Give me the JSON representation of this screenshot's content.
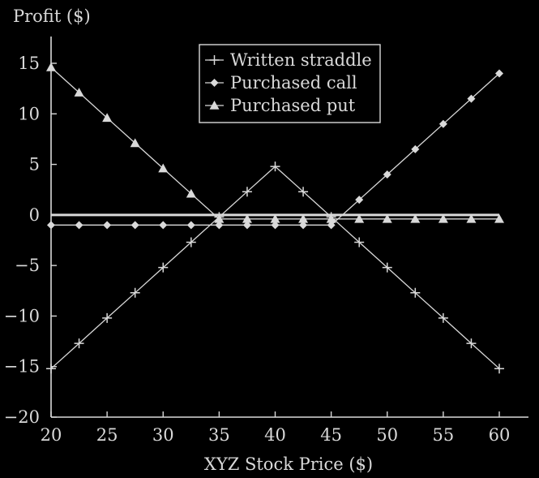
{
  "chart_data": {
    "type": "line",
    "ylabel": "Profit ($)",
    "xlabel": "XYZ Stock Price ($)",
    "xlim": [
      20,
      60
    ],
    "ylim": [
      -20,
      17
    ],
    "x_ticks": [
      20,
      25,
      30,
      35,
      40,
      45,
      50,
      55,
      60
    ],
    "y_ticks": [
      15,
      10,
      5,
      0,
      -5,
      -10,
      -15,
      -20
    ],
    "y_tick_labels": [
      "15",
      "10",
      "5",
      "0",
      "−5",
      "−10",
      "−15",
      "−20"
    ],
    "grid": false,
    "legend_position": "top-center",
    "zero_line": true,
    "colors": {
      "background": "#000000",
      "foreground": "#d9d9d9"
    },
    "series": [
      {
        "name": "Written straddle",
        "marker": "plus",
        "x": [
          20,
          22.5,
          25,
          27.5,
          30,
          32.5,
          35,
          37.5,
          40,
          42.5,
          45,
          47.5,
          50,
          52.5,
          55,
          57.5,
          60
        ],
        "y": [
          -15.2,
          -12.7,
          -10.2,
          -7.7,
          -5.2,
          -2.7,
          -0.2,
          2.3,
          4.8,
          2.3,
          -0.2,
          -2.7,
          -5.2,
          -7.7,
          -10.2,
          -12.7,
          -15.2
        ]
      },
      {
        "name": "Purchased call",
        "marker": "diamond",
        "x": [
          20,
          22.5,
          25,
          27.5,
          30,
          32.5,
          35,
          37.5,
          40,
          42.5,
          45,
          47.5,
          50,
          52.5,
          55,
          57.5,
          60
        ],
        "y": [
          -1.0,
          -1.0,
          -1.0,
          -1.0,
          -1.0,
          -1.0,
          -1.0,
          -1.0,
          -1.0,
          -1.0,
          -1.0,
          1.5,
          4.0,
          6.5,
          9.0,
          11.5,
          14.0
        ]
      },
      {
        "name": "Purchased put",
        "marker": "triangle",
        "x": [
          20,
          22.5,
          25,
          27.5,
          30,
          32.5,
          35,
          37.5,
          40,
          42.5,
          45,
          47.5,
          50,
          52.5,
          55,
          57.5,
          60
        ],
        "y": [
          14.6,
          12.1,
          9.6,
          7.1,
          4.6,
          2.1,
          -0.4,
          -0.4,
          -0.4,
          -0.4,
          -0.4,
          -0.4,
          -0.4,
          -0.4,
          -0.4,
          -0.4,
          -0.4
        ]
      }
    ]
  }
}
